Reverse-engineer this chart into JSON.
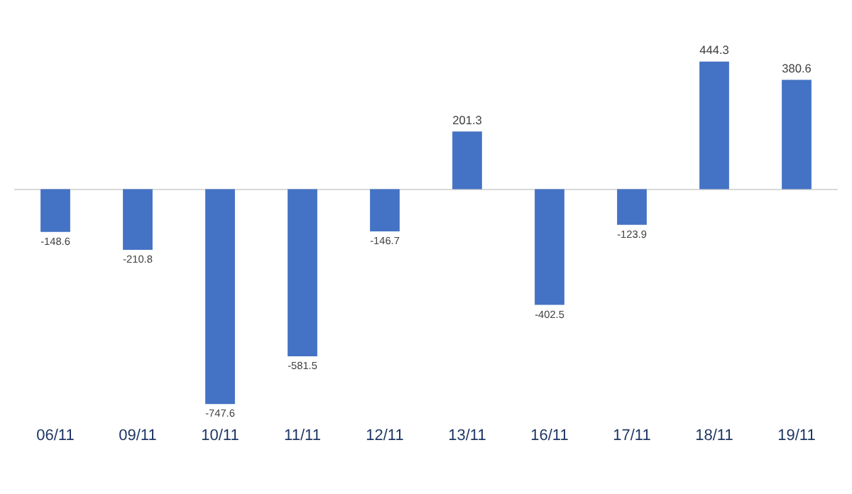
{
  "chart_data": {
    "type": "bar",
    "categories": [
      "06/11",
      "09/11",
      "10/11",
      "11/11",
      "12/11",
      "13/11",
      "16/11",
      "17/11",
      "18/11",
      "19/11"
    ],
    "values": [
      -148.6,
      -210.8,
      -747.6,
      -581.5,
      -146.7,
      201.3,
      -402.5,
      -123.9,
      444.3,
      380.6
    ],
    "color": "#4472c4",
    "data_labels": true,
    "tick_labels": "x",
    "grid": false,
    "legend": false
  }
}
